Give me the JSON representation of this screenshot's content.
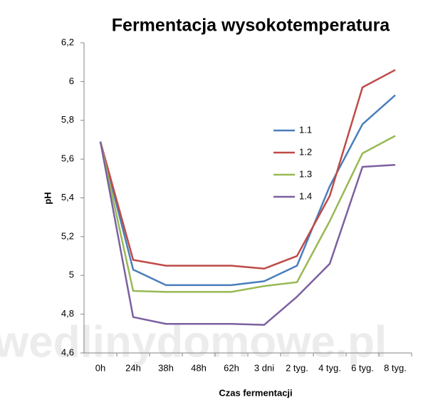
{
  "chart_data": {
    "type": "line",
    "title": "Fermentacja wysokotemperatura",
    "x_label": "Czas fermentacji",
    "y_label": "pH",
    "watermark": "wedlinydomowe.pl",
    "categories": [
      "0h",
      "24h",
      "38h",
      "48h",
      "62h",
      "3 dni",
      "2 tyg.",
      "4 tyg.",
      "6 tyg.",
      "8 tyg."
    ],
    "series": [
      {
        "name": "1.1",
        "color": "#4a7ebb",
        "values": [
          5.69,
          5.03,
          4.95,
          4.95,
          4.95,
          4.97,
          5.05,
          5.46,
          5.78,
          5.93
        ]
      },
      {
        "name": "1.2",
        "color": "#be4b48",
        "values": [
          5.69,
          5.08,
          5.05,
          5.05,
          5.05,
          5.035,
          5.1,
          5.41,
          5.97,
          6.06
        ]
      },
      {
        "name": "1.3",
        "color": "#98b954",
        "values": [
          5.69,
          4.92,
          4.915,
          4.915,
          4.915,
          4.945,
          4.965,
          5.28,
          5.63,
          5.72
        ]
      },
      {
        "name": "1.4",
        "color": "#7d60a0",
        "values": [
          5.69,
          4.785,
          4.75,
          4.75,
          4.75,
          4.745,
          4.89,
          5.06,
          5.56,
          5.57
        ]
      }
    ],
    "ylim": [
      4.6,
      6.2
    ],
    "yticks": [
      {
        "value": 4.6,
        "label": "4,6"
      },
      {
        "value": 4.8,
        "label": "4,8"
      },
      5,
      {
        "value": 5.2,
        "label": "5,2"
      },
      {
        "value": 5.4,
        "label": "5,4"
      },
      {
        "value": 5.6,
        "label": "5,6"
      },
      {
        "value": 5.8,
        "label": "5,8"
      },
      6,
      {
        "value": 6.2,
        "label": "6,2"
      }
    ],
    "grid": false,
    "legend": "inside-right"
  }
}
